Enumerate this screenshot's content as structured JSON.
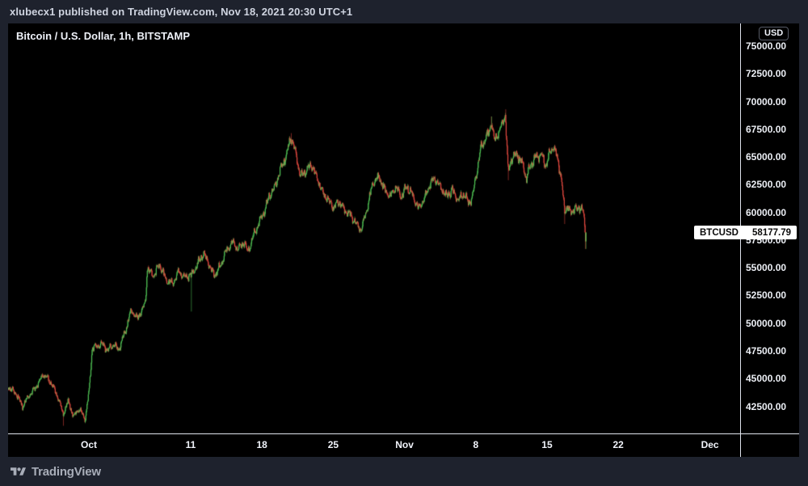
{
  "header": {
    "text": "xlubecx1 published on TradingView.com, Nov 18, 2021 20:30 UTC+1"
  },
  "chart": {
    "title": "Bitcoin / U.S. Dollar, 1h, BITSTAMP"
  },
  "price_axis": {
    "currency_label": "USD",
    "ticks": [
      "75000.00",
      "72500.00",
      "70000.00",
      "67500.00",
      "65000.00",
      "62500.00",
      "60000.00",
      "57500.00",
      "55000.00",
      "52500.00",
      "50000.00",
      "47500.00",
      "45000.00",
      "42500.00"
    ]
  },
  "time_axis": {
    "ticks": [
      {
        "label": "Oct",
        "day": 0,
        "kind": "month"
      },
      {
        "label": "11",
        "day": 10,
        "kind": "day"
      },
      {
        "label": "18",
        "day": 17,
        "kind": "day"
      },
      {
        "label": "25",
        "day": 24,
        "kind": "day"
      },
      {
        "label": "Nov",
        "day": 31,
        "kind": "month"
      },
      {
        "label": "8",
        "day": 38,
        "kind": "day"
      },
      {
        "label": "15",
        "day": 45,
        "kind": "day"
      },
      {
        "label": "22",
        "day": 52,
        "kind": "day"
      },
      {
        "label": "Dec",
        "day": 61,
        "kind": "month"
      }
    ]
  },
  "last_price_label": {
    "symbol": "BTCUSD",
    "value": "58177.79"
  },
  "footer": {
    "brand": "TradingView"
  },
  "colors": {
    "background": "#1e222d",
    "panel": "#000000",
    "up": "#4fc054",
    "down": "#e0483f",
    "axis_line": "#dfe3ec",
    "tick_text": "#eceff5",
    "badge_bg": "#ffffff",
    "badge_text": "#0b0b0b"
  },
  "chart_data": {
    "type": "candlestick",
    "title": "Bitcoin / U.S. Dollar, 1h, BITSTAMP",
    "symbol": "BTCUSD",
    "exchange": "BITSTAMP",
    "interval": "1h",
    "quote_currency": "USD",
    "last_price": 58177.79,
    "grid": "off",
    "legend_position": "none",
    "price_tick_values": [
      75000,
      72500,
      70000,
      67500,
      65000,
      62500,
      60000,
      57500,
      55000,
      52500,
      50000,
      47500,
      45000,
      42500
    ],
    "visible_price_range": [
      40050,
      76950
    ],
    "visible_time_range": [
      "2021-09-23",
      "2021-12-04"
    ],
    "time_start_day": -7.95,
    "time_end_day": 48.85,
    "candles_per_day": 24,
    "keyframes": [
      [
        -7.94,
        44300
      ],
      [
        -7.1,
        43600
      ],
      [
        -6.5,
        42500
      ],
      [
        -5.9,
        43400
      ],
      [
        -5.2,
        44200
      ],
      [
        -4.4,
        45400
      ],
      [
        -3.7,
        44600
      ],
      [
        -3.0,
        43300
      ],
      [
        -2.5,
        41800
      ],
      [
        -2.0,
        43000
      ],
      [
        -1.5,
        41600
      ],
      [
        -0.9,
        42300
      ],
      [
        -0.35,
        41300
      ],
      [
        0.05,
        43900
      ],
      [
        0.35,
        47800
      ],
      [
        0.8,
        47900
      ],
      [
        1.35,
        48200
      ],
      [
        1.85,
        47500
      ],
      [
        2.4,
        48100
      ],
      [
        2.95,
        47600
      ],
      [
        3.6,
        49300
      ],
      [
        4.2,
        51200
      ],
      [
        4.75,
        50400
      ],
      [
        5.3,
        51300
      ],
      [
        5.6,
        52000
      ],
      [
        5.75,
        54900
      ],
      [
        6.35,
        54300
      ],
      [
        7.0,
        55300
      ],
      [
        7.6,
        53900
      ],
      [
        8.25,
        53600
      ],
      [
        8.9,
        54700
      ],
      [
        9.5,
        54100
      ],
      [
        10.15,
        54400
      ],
      [
        10.8,
        55500
      ],
      [
        11.25,
        56300
      ],
      [
        11.75,
        55500
      ],
      [
        12.3,
        54300
      ],
      [
        12.85,
        55000
      ],
      [
        13.5,
        56500
      ],
      [
        14.1,
        57300
      ],
      [
        14.75,
        56700
      ],
      [
        15.25,
        57400
      ],
      [
        15.6,
        56400
      ],
      [
        16.1,
        57600
      ],
      [
        16.65,
        59000
      ],
      [
        17.2,
        60000
      ],
      [
        17.8,
        61600
      ],
      [
        18.35,
        62400
      ],
      [
        18.9,
        64000
      ],
      [
        19.4,
        65100
      ],
      [
        19.85,
        66800
      ],
      [
        20.3,
        65500
      ],
      [
        20.8,
        63300
      ],
      [
        21.3,
        63700
      ],
      [
        21.85,
        64300
      ],
      [
        22.4,
        63200
      ],
      [
        22.95,
        61800
      ],
      [
        23.5,
        61200
      ],
      [
        24.05,
        60400
      ],
      [
        24.6,
        61000
      ],
      [
        25.15,
        60200
      ],
      [
        25.7,
        59800
      ],
      [
        26.25,
        59000
      ],
      [
        26.8,
        58500
      ],
      [
        27.4,
        60600
      ],
      [
        27.95,
        62700
      ],
      [
        28.5,
        63200
      ],
      [
        29.05,
        62100
      ],
      [
        29.6,
        61400
      ],
      [
        30.15,
        62300
      ],
      [
        30.7,
        61400
      ],
      [
        31.25,
        62300
      ],
      [
        31.85,
        61500
      ],
      [
        32.4,
        60400
      ],
      [
        32.95,
        61200
      ],
      [
        33.5,
        62500
      ],
      [
        34.05,
        63100
      ],
      [
        34.6,
        62200
      ],
      [
        35.15,
        61500
      ],
      [
        35.7,
        62000
      ],
      [
        36.3,
        61100
      ],
      [
        36.85,
        61700
      ],
      [
        37.3,
        60900
      ],
      [
        37.7,
        61400
      ],
      [
        38.1,
        63600
      ],
      [
        38.5,
        65700
      ],
      [
        38.9,
        66500
      ],
      [
        39.3,
        67200
      ],
      [
        39.55,
        68200
      ],
      [
        39.85,
        66400
      ],
      [
        40.25,
        67200
      ],
      [
        40.65,
        68000
      ],
      [
        40.93,
        68900
      ],
      [
        41.2,
        63600
      ],
      [
        41.5,
        64800
      ],
      [
        42.05,
        65300
      ],
      [
        42.6,
        64400
      ],
      [
        43.0,
        63100
      ],
      [
        43.4,
        64300
      ],
      [
        43.9,
        64900
      ],
      [
        44.45,
        65300
      ],
      [
        44.85,
        64200
      ],
      [
        45.3,
        65300
      ],
      [
        45.65,
        66100
      ],
      [
        46.1,
        64600
      ],
      [
        46.45,
        62900
      ],
      [
        46.75,
        60100
      ],
      [
        47.05,
        60600
      ],
      [
        47.4,
        59900
      ],
      [
        47.7,
        60500
      ],
      [
        48.0,
        60100
      ],
      [
        48.35,
        60600
      ],
      [
        48.6,
        59900
      ],
      [
        48.72,
        58600
      ],
      [
        48.8,
        57500
      ],
      [
        48.85,
        58177.79
      ]
    ],
    "wick_events": [
      {
        "t": -2.5,
        "low": 40750
      },
      {
        "t": 10.08,
        "low": 51050
      },
      {
        "t": 19.85,
        "high": 67150
      },
      {
        "t": 39.55,
        "high": 68650
      },
      {
        "t": 40.93,
        "high": 69300
      },
      {
        "t": 41.2,
        "low": 62900
      },
      {
        "t": 46.75,
        "low": 58950
      },
      {
        "t": 48.8,
        "low": 56700
      }
    ]
  }
}
